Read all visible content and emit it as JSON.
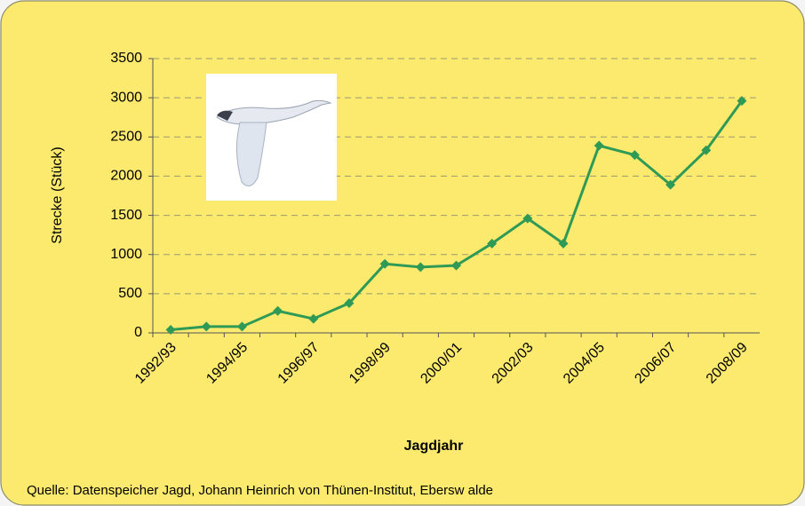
{
  "chart_data": {
    "type": "line",
    "y_label": "Strecke (Stück)",
    "x_label": "Jagdjahr",
    "source": "Quelle: Datenspeicher Jagd, Johann Heinrich von Thünen-Institut, Ebersw alde",
    "categories": [
      "1992/93",
      null,
      "1994/95",
      null,
      "1996/97",
      null,
      "1998/99",
      null,
      "2000/01",
      null,
      "2002/03",
      null,
      "2004/05",
      null,
      "2006/07",
      null,
      "2008/09"
    ],
    "series": [
      {
        "color": "#2f9a55",
        "values": [
          40,
          80,
          80,
          280,
          180,
          380,
          880,
          840,
          860,
          1140,
          1460,
          1140,
          2390,
          2270,
          1890,
          2330,
          2960
        ]
      }
    ],
    "ylim": [
      0,
      3500
    ],
    "yticks": [
      0,
      500,
      1000,
      1500,
      2000,
      2500,
      3000,
      3500
    ],
    "grid": true
  }
}
